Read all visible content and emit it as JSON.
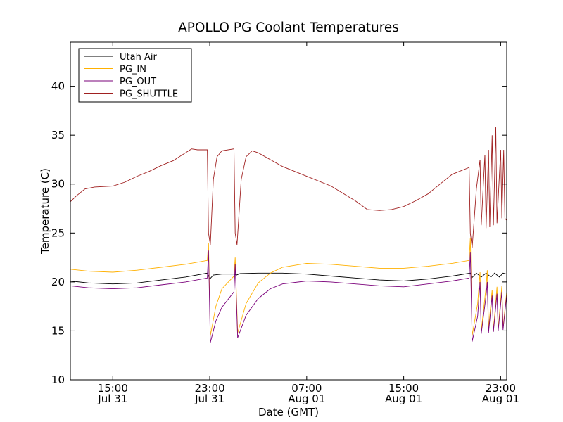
{
  "chart_data": {
    "type": "line",
    "title": "APOLLO PG Coolant Temperatures",
    "xlabel": "Date (GMT)",
    "ylabel": "Temperature (C)",
    "ylim": [
      10,
      44.5
    ],
    "xlim_hours": [
      11.5,
      47.5
    ],
    "grid": false,
    "legend_position": "top-left",
    "yticks": [
      10,
      15,
      20,
      25,
      30,
      35,
      40
    ],
    "xticks": [
      {
        "hour": 15,
        "time": "15:00",
        "date": "Jul 31"
      },
      {
        "hour": 23,
        "time": "23:00",
        "date": "Jul 31"
      },
      {
        "hour": 31,
        "time": "07:00",
        "date": "Aug 01"
      },
      {
        "hour": 39,
        "time": "15:00",
        "date": "Aug 01"
      },
      {
        "hour": 47,
        "time": "23:00",
        "date": "Aug 01"
      }
    ],
    "series": [
      {
        "name": "Utah Air",
        "color": "#000000",
        "points": [
          [
            11.5,
            20.1
          ],
          [
            13,
            19.9
          ],
          [
            15,
            19.8
          ],
          [
            17,
            19.9
          ],
          [
            19,
            20.2
          ],
          [
            21,
            20.5
          ],
          [
            22.8,
            20.9
          ],
          [
            23.0,
            20.3
          ],
          [
            23.3,
            20.7
          ],
          [
            24,
            20.8
          ],
          [
            25,
            20.8
          ],
          [
            25.2,
            20.7
          ],
          [
            25.5,
            20.85
          ],
          [
            27,
            20.9
          ],
          [
            29,
            20.9
          ],
          [
            31,
            20.8
          ],
          [
            33,
            20.6
          ],
          [
            35,
            20.4
          ],
          [
            37,
            20.2
          ],
          [
            39,
            20.1
          ],
          [
            41,
            20.3
          ],
          [
            43,
            20.6
          ],
          [
            44.5,
            20.9
          ],
          [
            44.6,
            20.4
          ],
          [
            45,
            20.9
          ],
          [
            45.4,
            20.5
          ],
          [
            45.8,
            20.9
          ],
          [
            46.2,
            20.5
          ],
          [
            46.5,
            20.9
          ],
          [
            46.9,
            20.5
          ],
          [
            47.2,
            20.9
          ],
          [
            47.5,
            20.8
          ]
        ]
      },
      {
        "name": "PG_IN",
        "color": "#ffb000",
        "points": [
          [
            11.5,
            21.3
          ],
          [
            13,
            21.1
          ],
          [
            15,
            21.0
          ],
          [
            17,
            21.2
          ],
          [
            19,
            21.5
          ],
          [
            21,
            21.8
          ],
          [
            22.8,
            22.2
          ],
          [
            22.9,
            24.0
          ],
          [
            23.05,
            14.5
          ],
          [
            23.5,
            17.5
          ],
          [
            24,
            19.3
          ],
          [
            25,
            20.6
          ],
          [
            25.1,
            22.5
          ],
          [
            25.3,
            14.8
          ],
          [
            26,
            17.8
          ],
          [
            27,
            19.9
          ],
          [
            28,
            20.9
          ],
          [
            29,
            21.5
          ],
          [
            31,
            21.9
          ],
          [
            33,
            21.8
          ],
          [
            35,
            21.6
          ],
          [
            37,
            21.4
          ],
          [
            39,
            21.4
          ],
          [
            41,
            21.6
          ],
          [
            43,
            21.9
          ],
          [
            44.4,
            22.2
          ],
          [
            44.5,
            24.5
          ],
          [
            44.65,
            14.5
          ],
          [
            45.1,
            17.8
          ],
          [
            45.3,
            21.0
          ],
          [
            45.4,
            15.0
          ],
          [
            45.8,
            19.5
          ],
          [
            45.9,
            21.2
          ],
          [
            46.0,
            15.2
          ],
          [
            46.3,
            19.2
          ],
          [
            46.4,
            15.0
          ],
          [
            46.7,
            19.5
          ],
          [
            46.8,
            15.2
          ],
          [
            47.1,
            19.6
          ],
          [
            47.2,
            15.3
          ],
          [
            47.5,
            19.0
          ]
        ]
      },
      {
        "name": "PG_OUT",
        "color": "#7a007a",
        "points": [
          [
            11.5,
            19.6
          ],
          [
            13,
            19.4
          ],
          [
            15,
            19.3
          ],
          [
            17,
            19.4
          ],
          [
            19,
            19.7
          ],
          [
            21,
            20.0
          ],
          [
            22.8,
            20.4
          ],
          [
            22.9,
            23.2
          ],
          [
            23.05,
            13.8
          ],
          [
            23.5,
            16.0
          ],
          [
            24,
            17.4
          ],
          [
            25,
            19.0
          ],
          [
            25.1,
            21.8
          ],
          [
            25.3,
            14.3
          ],
          [
            26,
            16.6
          ],
          [
            27,
            18.3
          ],
          [
            28,
            19.3
          ],
          [
            29,
            19.8
          ],
          [
            31,
            20.1
          ],
          [
            33,
            20.0
          ],
          [
            35,
            19.8
          ],
          [
            37,
            19.6
          ],
          [
            39,
            19.5
          ],
          [
            41,
            19.8
          ],
          [
            43,
            20.1
          ],
          [
            44.4,
            20.4
          ],
          [
            44.5,
            23.0
          ],
          [
            44.65,
            13.9
          ],
          [
            45.1,
            16.5
          ],
          [
            45.3,
            20.0
          ],
          [
            45.4,
            14.7
          ],
          [
            45.8,
            18.6
          ],
          [
            45.9,
            20.0
          ],
          [
            46.0,
            14.8
          ],
          [
            46.3,
            18.6
          ],
          [
            46.4,
            14.9
          ],
          [
            46.7,
            18.8
          ],
          [
            46.8,
            15.0
          ],
          [
            47.1,
            19.0
          ],
          [
            47.2,
            15.1
          ],
          [
            47.5,
            18.7
          ]
        ]
      },
      {
        "name": "PG_SHUTTLE",
        "color": "#a02020",
        "points": [
          [
            11.5,
            28.2
          ],
          [
            12,
            28.8
          ],
          [
            12.7,
            29.5
          ],
          [
            13.5,
            29.7
          ],
          [
            15,
            29.8
          ],
          [
            16,
            30.2
          ],
          [
            17,
            30.8
          ],
          [
            18,
            31.3
          ],
          [
            19,
            31.9
          ],
          [
            20,
            32.4
          ],
          [
            21,
            33.2
          ],
          [
            21.5,
            33.6
          ],
          [
            22,
            33.5
          ],
          [
            22.8,
            33.5
          ],
          [
            22.9,
            25.0
          ],
          [
            23.05,
            23.8
          ],
          [
            23.3,
            30.5
          ],
          [
            23.6,
            32.8
          ],
          [
            24,
            33.4
          ],
          [
            25,
            33.6
          ],
          [
            25.1,
            25.0
          ],
          [
            25.25,
            23.8
          ],
          [
            25.6,
            30.5
          ],
          [
            26,
            32.8
          ],
          [
            26.5,
            33.4
          ],
          [
            27,
            33.2
          ],
          [
            28,
            32.5
          ],
          [
            29,
            31.8
          ],
          [
            31,
            30.8
          ],
          [
            33,
            29.8
          ],
          [
            35,
            28.3
          ],
          [
            36,
            27.4
          ],
          [
            37,
            27.3
          ],
          [
            38,
            27.4
          ],
          [
            39,
            27.7
          ],
          [
            40,
            28.3
          ],
          [
            41,
            29.0
          ],
          [
            42,
            30.0
          ],
          [
            43,
            31.0
          ],
          [
            44.4,
            31.7
          ],
          [
            44.5,
            25.0
          ],
          [
            44.65,
            23.5
          ],
          [
            45.0,
            29.5
          ],
          [
            45.3,
            32.5
          ],
          [
            45.4,
            25.8
          ],
          [
            45.7,
            33.0
          ],
          [
            45.8,
            25.5
          ],
          [
            46.0,
            33.5
          ],
          [
            46.1,
            25.6
          ],
          [
            46.3,
            35.0
          ],
          [
            46.4,
            25.8
          ],
          [
            46.6,
            35.8
          ],
          [
            46.7,
            26.0
          ],
          [
            47.0,
            33.5
          ],
          [
            47.1,
            26.5
          ],
          [
            47.25,
            33.5
          ],
          [
            47.35,
            26.5
          ],
          [
            47.5,
            26.3
          ]
        ]
      }
    ]
  }
}
